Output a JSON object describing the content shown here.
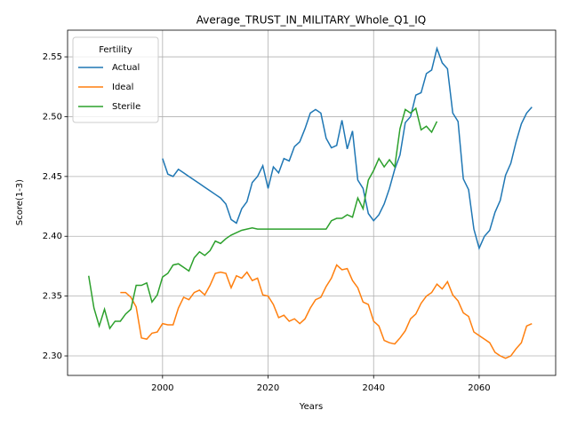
{
  "chart_data": {
    "type": "line",
    "title": "Average_TRUST_IN_MILITARY_Whole_Q1_IQ",
    "x_label": "Years",
    "y_label": "Score(1-3)",
    "legend_title": "Fertility",
    "legend": "upper left",
    "grid": true,
    "xlim": [
      1982,
      2074.5
    ],
    "ylim": [
      2.2837,
      2.5723
    ],
    "xticks": [
      2000,
      2020,
      2040,
      2060
    ],
    "yticks": [
      {
        "value": 2.3,
        "label": "2.30"
      },
      2.35,
      {
        "value": 2.4,
        "label": "2.40"
      },
      2.45,
      {
        "value": 2.5,
        "label": "2.50"
      },
      2.55
    ],
    "x": [
      1986,
      1987,
      1988,
      1989,
      1990,
      1991,
      1992,
      1993,
      1994,
      1995,
      1996,
      1997,
      1998,
      1999,
      2000,
      2001,
      2002,
      2003,
      2004,
      2005,
      2006,
      2007,
      2008,
      2009,
      2010,
      2011,
      2012,
      2013,
      2014,
      2015,
      2016,
      2017,
      2018,
      2019,
      2020,
      2021,
      2022,
      2023,
      2024,
      2025,
      2026,
      2027,
      2028,
      2029,
      2030,
      2031,
      2032,
      2033,
      2034,
      2035,
      2036,
      2037,
      2038,
      2039,
      2040,
      2041,
      2042,
      2043,
      2044,
      2045,
      2046,
      2047,
      2048,
      2049,
      2050,
      2051,
      2052,
      2053,
      2054,
      2055,
      2056,
      2057,
      2058,
      2059,
      2060,
      2061,
      2062,
      2063,
      2064,
      2065,
      2066,
      2067,
      2068,
      2069,
      2070
    ],
    "series": [
      {
        "name": "Actual",
        "color": "#1f77b4",
        "values": [
          null,
          null,
          null,
          null,
          null,
          null,
          null,
          null,
          null,
          null,
          null,
          null,
          null,
          null,
          2.465,
          2.452,
          2.45,
          2.456,
          2.453,
          2.45,
          2.447,
          2.444,
          2.441,
          2.438,
          2.435,
          2.432,
          2.427,
          2.414,
          2.411,
          2.423,
          2.429,
          2.445,
          2.45,
          2.459,
          2.44,
          2.458,
          2.453,
          2.465,
          2.463,
          2.475,
          2.479,
          2.49,
          2.503,
          2.506,
          2.503,
          2.482,
          2.474,
          2.476,
          2.497,
          2.473,
          2.488,
          2.447,
          2.44,
          2.419,
          2.413,
          2.418,
          2.427,
          2.44,
          2.456,
          2.468,
          2.495,
          2.5,
          2.518,
          2.52,
          2.536,
          2.539,
          2.557,
          2.545,
          2.54,
          2.503,
          2.496,
          2.448,
          2.439,
          2.406,
          2.39,
          2.4,
          2.405,
          2.42,
          2.43,
          2.451,
          2.461,
          2.479,
          2.494,
          2.503,
          2.508
        ]
      },
      {
        "name": "Ideal",
        "color": "#ff7f0e",
        "values": [
          null,
          null,
          null,
          null,
          null,
          null,
          2.353,
          2.353,
          2.349,
          2.341,
          2.315,
          2.314,
          2.319,
          2.32,
          2.327,
          2.326,
          2.326,
          2.34,
          2.349,
          2.347,
          2.353,
          2.355,
          2.351,
          2.359,
          2.369,
          2.37,
          2.369,
          2.357,
          2.367,
          2.365,
          2.37,
          2.363,
          2.365,
          2.351,
          2.35,
          2.343,
          2.332,
          2.334,
          2.329,
          2.331,
          2.327,
          2.331,
          2.34,
          2.347,
          2.349,
          2.358,
          2.365,
          2.376,
          2.372,
          2.373,
          2.363,
          2.357,
          2.345,
          2.343,
          2.329,
          2.325,
          2.313,
          2.311,
          2.31,
          2.315,
          2.321,
          2.331,
          2.335,
          2.344,
          2.35,
          2.353,
          2.36,
          2.356,
          2.362,
          2.351,
          2.346,
          2.336,
          2.333,
          2.32,
          2.317,
          2.314,
          2.311,
          2.303,
          2.3,
          2.298,
          2.3,
          2.306,
          2.311,
          2.325,
          2.327
        ]
      },
      {
        "name": "Sterile",
        "color": "#2ca02c",
        "values": [
          2.367,
          2.34,
          2.325,
          2.339,
          2.323,
          2.329,
          2.329,
          2.335,
          2.339,
          2.359,
          2.359,
          2.361,
          2.345,
          2.351,
          2.366,
          2.369,
          2.376,
          2.377,
          2.374,
          2.371,
          2.382,
          2.387,
          2.384,
          2.388,
          2.396,
          2.394,
          2.398,
          2.401,
          2.403,
          2.405,
          2.406,
          2.407,
          2.406,
          2.406,
          2.406,
          2.406,
          2.406,
          2.406,
          2.406,
          2.406,
          2.406,
          2.406,
          2.406,
          2.406,
          2.406,
          2.406,
          2.413,
          2.415,
          2.415,
          2.418,
          2.416,
          2.432,
          2.423,
          2.447,
          2.455,
          2.465,
          2.458,
          2.464,
          2.458,
          2.49,
          2.506,
          2.503,
          2.507,
          2.489,
          2.492,
          2.487,
          2.496,
          null,
          null,
          null,
          null,
          null,
          null,
          null,
          null,
          null,
          null,
          null,
          null,
          null,
          null,
          null,
          null,
          null,
          null
        ]
      }
    ]
  }
}
